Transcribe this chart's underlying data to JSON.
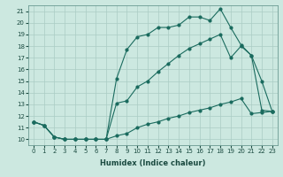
{
  "xlabel": "Humidex (Indice chaleur)",
  "bg_color": "#cce8e0",
  "grid_color": "#aaccC4",
  "line_color": "#1a6b5e",
  "series1_x": [
    0,
    1,
    2,
    3,
    4,
    5,
    6,
    7,
    8,
    9,
    10,
    11,
    12,
    13,
    14,
    15,
    16,
    17,
    18,
    19,
    20,
    21,
    22,
    23
  ],
  "series1_y": [
    11.5,
    11.2,
    10.2,
    10.0,
    10.0,
    10.0,
    10.0,
    10.0,
    15.2,
    17.7,
    18.8,
    19.0,
    19.6,
    19.6,
    19.8,
    20.5,
    20.5,
    20.2,
    21.2,
    19.6,
    18.1,
    17.2,
    12.5,
    12.4
  ],
  "series2_x": [
    0,
    1,
    2,
    3,
    4,
    5,
    6,
    7,
    8,
    9,
    10,
    11,
    12,
    13,
    14,
    15,
    16,
    17,
    18,
    19,
    20,
    21,
    22,
    23
  ],
  "series2_y": [
    11.5,
    11.2,
    10.2,
    10.0,
    10.0,
    10.0,
    10.0,
    10.0,
    10.3,
    10.5,
    11.0,
    11.3,
    11.5,
    11.8,
    12.0,
    12.3,
    12.5,
    12.7,
    13.0,
    13.2,
    13.5,
    12.2,
    12.3,
    12.4
  ],
  "series3_x": [
    0,
    1,
    2,
    3,
    4,
    5,
    6,
    7,
    8,
    9,
    10,
    11,
    12,
    13,
    14,
    15,
    16,
    17,
    18,
    19,
    20,
    21,
    22,
    23
  ],
  "series3_y": [
    11.5,
    11.2,
    10.2,
    10.0,
    10.0,
    10.0,
    10.0,
    10.0,
    13.1,
    13.3,
    14.5,
    15.0,
    15.8,
    16.5,
    17.2,
    17.8,
    18.2,
    18.6,
    19.0,
    17.0,
    18.0,
    17.2,
    15.0,
    12.4
  ],
  "ylim": [
    9.5,
    21.5
  ],
  "xlim": [
    -0.5,
    23.5
  ],
  "yticks": [
    10,
    11,
    12,
    13,
    14,
    15,
    16,
    17,
    18,
    19,
    20,
    21
  ],
  "xticks": [
    0,
    1,
    2,
    3,
    4,
    5,
    6,
    7,
    8,
    9,
    10,
    11,
    12,
    13,
    14,
    15,
    16,
    17,
    18,
    19,
    20,
    21,
    22,
    23
  ]
}
